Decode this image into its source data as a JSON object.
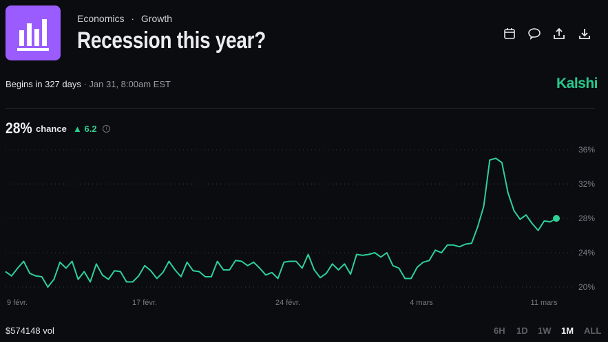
{
  "header": {
    "category": "Economics",
    "subcategory": "Growth",
    "separator": "·",
    "title": "Recession this year?",
    "logo_icon": "bar-chart-icon",
    "logo_color": "#9a5cff",
    "toolbar": [
      {
        "icon": "calendar-icon"
      },
      {
        "icon": "comment-icon"
      },
      {
        "icon": "share-icon"
      },
      {
        "icon": "download-icon"
      }
    ]
  },
  "subheader": {
    "begins": "Begins in 327 days",
    "separator": " · ",
    "date": "Jan 31, 8:00am EST",
    "brand": "Kalshi",
    "brand_color": "#28c88c"
  },
  "summary": {
    "percent": "28%",
    "chance_label": "chance",
    "delta": "▲ 6.2",
    "delta_color": "#2ecc8f",
    "info_icon": "info-icon"
  },
  "chart_data": {
    "type": "line",
    "title": "",
    "xlabel": "",
    "ylabel": "",
    "ylim": [
      20,
      36
    ],
    "y_ticks": [
      "36%",
      "32%",
      "28%",
      "24%",
      "20%"
    ],
    "y_tick_values": [
      36,
      32,
      28,
      24,
      20
    ],
    "x_ticks": [
      "9 févr.",
      "17 févr.",
      "24 févr.",
      "4 mars",
      "11 mars"
    ],
    "grid": "horizontal dotted",
    "line_color": "#2ed198",
    "series": [
      {
        "values": [
          21.8,
          21.3,
          22.2,
          23.0,
          21.6,
          21.3,
          21.2,
          20.0,
          20.9,
          22.9,
          22.2,
          23.0,
          20.9,
          21.8,
          20.6,
          22.7,
          21.4,
          20.9,
          21.9,
          21.8,
          20.6,
          20.6,
          21.3,
          22.5,
          21.9,
          21.0,
          21.7,
          23.0,
          22.0,
          21.2,
          22.9,
          21.9,
          21.8,
          21.2,
          21.2,
          23.0,
          22.0,
          22.0,
          23.1,
          23.0,
          22.5,
          22.9,
          22.2,
          21.4,
          21.7,
          21.0,
          22.9,
          23.0,
          23.0,
          22.2,
          23.8,
          22.0,
          21.1,
          21.6,
          22.7,
          22.0,
          22.7,
          21.5,
          23.8,
          23.7,
          23.8,
          24.0,
          23.5,
          24.0,
          22.5,
          22.2,
          21.0,
          21.0,
          22.3,
          22.9,
          23.1,
          24.3,
          24.0,
          24.9,
          24.9,
          24.7,
          25.0,
          25.1,
          27.0,
          29.4,
          34.8,
          35.0,
          34.5,
          31.0,
          28.9,
          27.9,
          28.4,
          27.4,
          26.6,
          27.7,
          27.6,
          28.0
        ]
      }
    ]
  },
  "footer": {
    "volume": "$574148 vol",
    "ranges": [
      "6H",
      "1D",
      "1W",
      "1M",
      "ALL"
    ],
    "selected_range": "1M"
  }
}
